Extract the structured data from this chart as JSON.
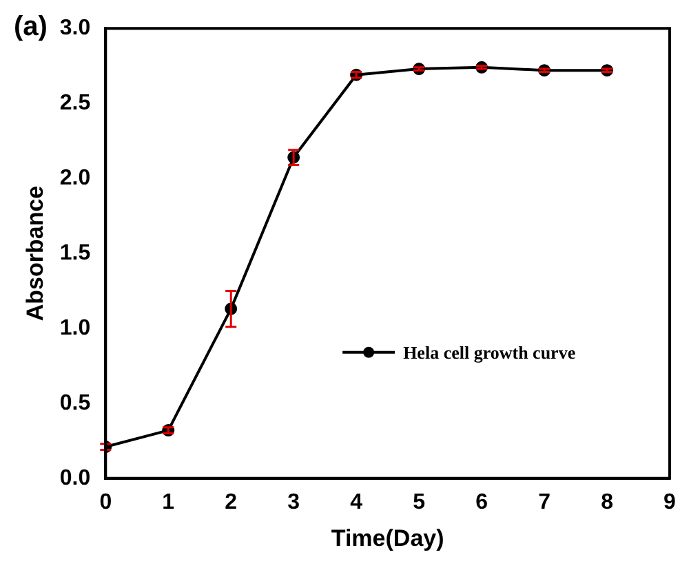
{
  "chart_data": {
    "type": "line",
    "xlabel": "Time(Day)",
    "ylabel": "Absorbance",
    "annotations": [
      "(a)"
    ],
    "x": [
      0,
      1,
      2,
      3,
      4,
      5,
      6,
      7,
      8
    ],
    "series": [
      {
        "name": "Hela cell growth curve",
        "color": "#000000",
        "values": [
          0.21,
          0.32,
          1.13,
          2.14,
          2.69,
          2.73,
          2.74,
          2.72,
          2.72
        ],
        "errors": [
          0.02,
          0.02,
          0.12,
          0.05,
          0.02,
          0.01,
          0.01,
          0.01,
          0.01
        ]
      }
    ],
    "xlim": [
      0,
      9
    ],
    "xticks": [
      0,
      1,
      2,
      3,
      4,
      5,
      6,
      7,
      8,
      9
    ],
    "ylim": [
      0,
      3
    ],
    "yticks": [
      {
        "value": 0,
        "label": "0.0"
      },
      0.5,
      {
        "value": 1,
        "label": "1.0"
      },
      1.5,
      {
        "value": 2,
        "label": "2.0"
      },
      2.5,
      {
        "value": 3,
        "label": "3.0"
      }
    ],
    "marker": "circle",
    "line_style": "solid",
    "legend": "right",
    "grid": false
  }
}
